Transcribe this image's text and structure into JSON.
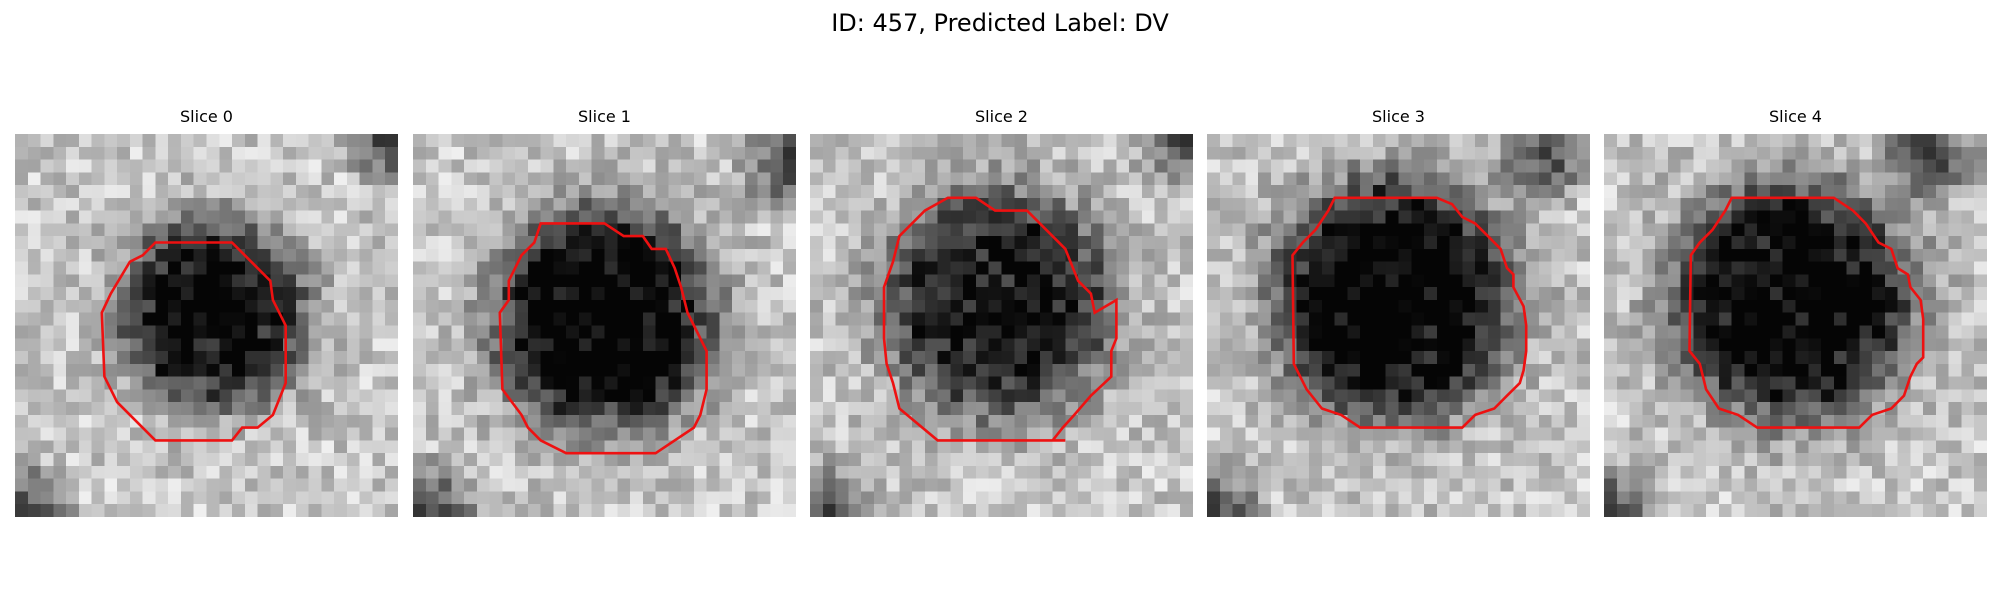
{
  "figure": {
    "suptitle": "ID: 457, Predicted Label: DV"
  },
  "slices": [
    {
      "title": "Slice 0",
      "image": "grayscale-ct-patch-dark-nodule",
      "overlay": "red-contour-outline"
    },
    {
      "title": "Slice 1",
      "image": "grayscale-ct-patch-dark-nodule",
      "overlay": "red-contour-outline"
    },
    {
      "title": "Slice 2",
      "image": "grayscale-ct-patch-dark-nodule",
      "overlay": "red-contour-outline"
    },
    {
      "title": "Slice 3",
      "image": "grayscale-ct-patch-dark-nodule",
      "overlay": "red-contour-outline"
    },
    {
      "title": "Slice 4",
      "image": "grayscale-ct-patch-dark-nodule",
      "overlay": "red-contour-outline"
    }
  ],
  "colors": {
    "contour": "#ee1111",
    "background": "#ffffff"
  }
}
